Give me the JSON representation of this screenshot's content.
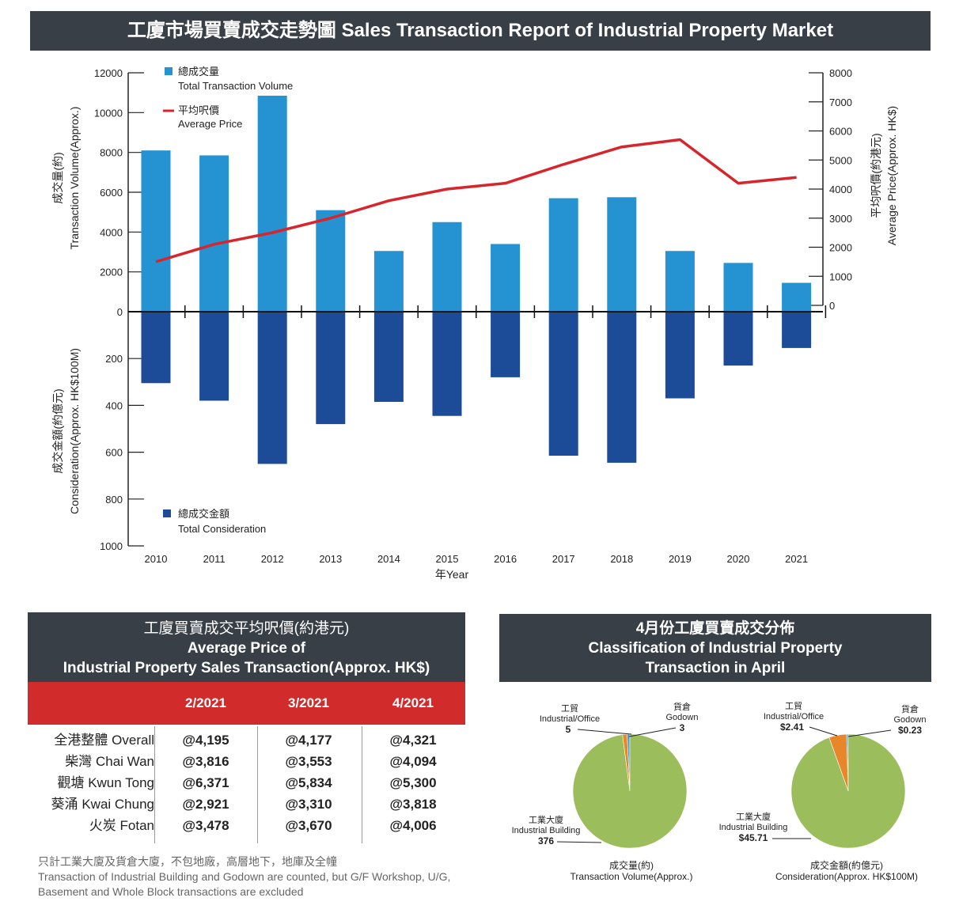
{
  "title": "工廈市場買賣成交走勢圖 Sales Transaction Report of Industrial Property Market",
  "chart_data": [
    {
      "type": "bar+line",
      "categories": [
        "2010",
        "2011",
        "2012",
        "2013",
        "2014",
        "2015",
        "2016",
        "2017",
        "2018",
        "2019",
        "2020",
        "2021"
      ],
      "xlabel_zh": "年",
      "xlabel_en": "Year",
      "series": [
        {
          "name_zh": "總成交量",
          "name_en": "Total Transaction Volume",
          "kind": "bar-up",
          "color": "#2592d2",
          "values": [
            8100,
            7850,
            10850,
            5100,
            3050,
            4500,
            3400,
            5700,
            5750,
            3050,
            2450,
            1450
          ]
        },
        {
          "name_zh": "總成交金額",
          "name_en": "Total Consideration",
          "kind": "bar-down",
          "color": "#1c4c97",
          "values": [
            305,
            380,
            650,
            480,
            385,
            445,
            280,
            615,
            645,
            370,
            230,
            155
          ]
        },
        {
          "name_zh": "平均呎價",
          "name_en": "Average Price",
          "kind": "line",
          "color": "#d7252c",
          "values": [
            1500,
            2100,
            2500,
            3000,
            3600,
            4000,
            4200,
            4850,
            5450,
            5700,
            4200,
            4400
          ]
        }
      ],
      "left_top_axis": {
        "label_zh": "成交量(約)",
        "label_en": "Transaction Volume(Approx.)",
        "ticks": [
          "12000",
          "10000",
          "8000",
          "6000",
          "4000",
          "2000",
          "0"
        ],
        "ylim": [
          0,
          12000
        ]
      },
      "left_bottom_axis": {
        "label_zh": "成交金額(約億元)",
        "label_en": "Consideration(Approx. HK$100M)",
        "ticks": [
          "200",
          "400",
          "600",
          "800",
          "1000"
        ],
        "ylim": [
          0,
          1000
        ]
      },
      "right_axis": {
        "label_zh": "平均呎價(約港元)",
        "label_en": "Average Price(Approx. HK$)",
        "ticks": [
          "8000",
          "7000",
          "6000",
          "5000",
          "4000",
          "3000",
          "2000",
          "1000",
          "0"
        ],
        "ylim": [
          0,
          8000
        ]
      }
    },
    {
      "type": "pie",
      "title_zh": "成交量(約)",
      "title_en": "Transaction Volume(Approx.)",
      "slices": [
        {
          "label_zh": "工業大廈",
          "label_en": "Industrial Building",
          "value": 376,
          "value_label": "376",
          "color": "#9bbd5c"
        },
        {
          "label_zh": "工貿",
          "label_en": "Industrial/Office",
          "value": 5,
          "value_label": "5",
          "color": "#e8862a"
        },
        {
          "label_zh": "貨倉",
          "label_en": "Godown",
          "value": 3,
          "value_label": "3",
          "color": "#3b9ed8"
        }
      ]
    },
    {
      "type": "pie",
      "title_zh": "成交金額(約億元)",
      "title_en": "Consideration(Approx. HK$100M)",
      "slices": [
        {
          "label_zh": "工業大廈",
          "label_en": "Industrial Building",
          "value": 45.71,
          "value_label": "$45.71",
          "color": "#9bbd5c"
        },
        {
          "label_zh": "工貿",
          "label_en": "Industrial/Office",
          "value": 2.41,
          "value_label": "$2.41",
          "color": "#e8862a"
        },
        {
          "label_zh": "貨倉",
          "label_en": "Godown",
          "value": 0.23,
          "value_label": "$0.23",
          "color": "#3b9ed8"
        }
      ]
    },
    {
      "type": "table",
      "title_zh": "工廈買賣成交平均呎價(約港元)",
      "title_en_1": "Average Price of",
      "title_en_2": "Industrial Property Sales Transaction(Approx. HK$)",
      "columns": [
        "2/2021",
        "3/2021",
        "4/2021"
      ],
      "rows": [
        {
          "name": "全港整體 Overall",
          "values": [
            "@4,195",
            "@4,177",
            "@4,321"
          ]
        },
        {
          "name": "柴灣 Chai Wan",
          "values": [
            "@3,816",
            "@3,553",
            "@4,094"
          ]
        },
        {
          "name": "觀塘 Kwun Tong",
          "values": [
            "@6,371",
            "@5,834",
            "@5,300"
          ]
        },
        {
          "name": "葵涌 Kwai Chung",
          "values": [
            "@2,921",
            "@3,310",
            "@3,818"
          ]
        },
        {
          "name": "火炭 Fotan",
          "values": [
            "@3,478",
            "@3,670",
            "@4,006"
          ]
        }
      ]
    }
  ],
  "pie_section": {
    "title_zh": "4月份工廈買賣成交分佈",
    "title_en_1": "Classification of Industrial Property",
    "title_en_2": "Transaction in April"
  },
  "note": {
    "zh": "只計工業大廈及貨倉大廈，不包地廠，高層地下，地庫及全幢",
    "en_1": "Transaction of Industrial Building and Godown are counted, but G/F Workshop, U/G,",
    "en_2": "Basement and Whole Block transactions are excluded"
  }
}
